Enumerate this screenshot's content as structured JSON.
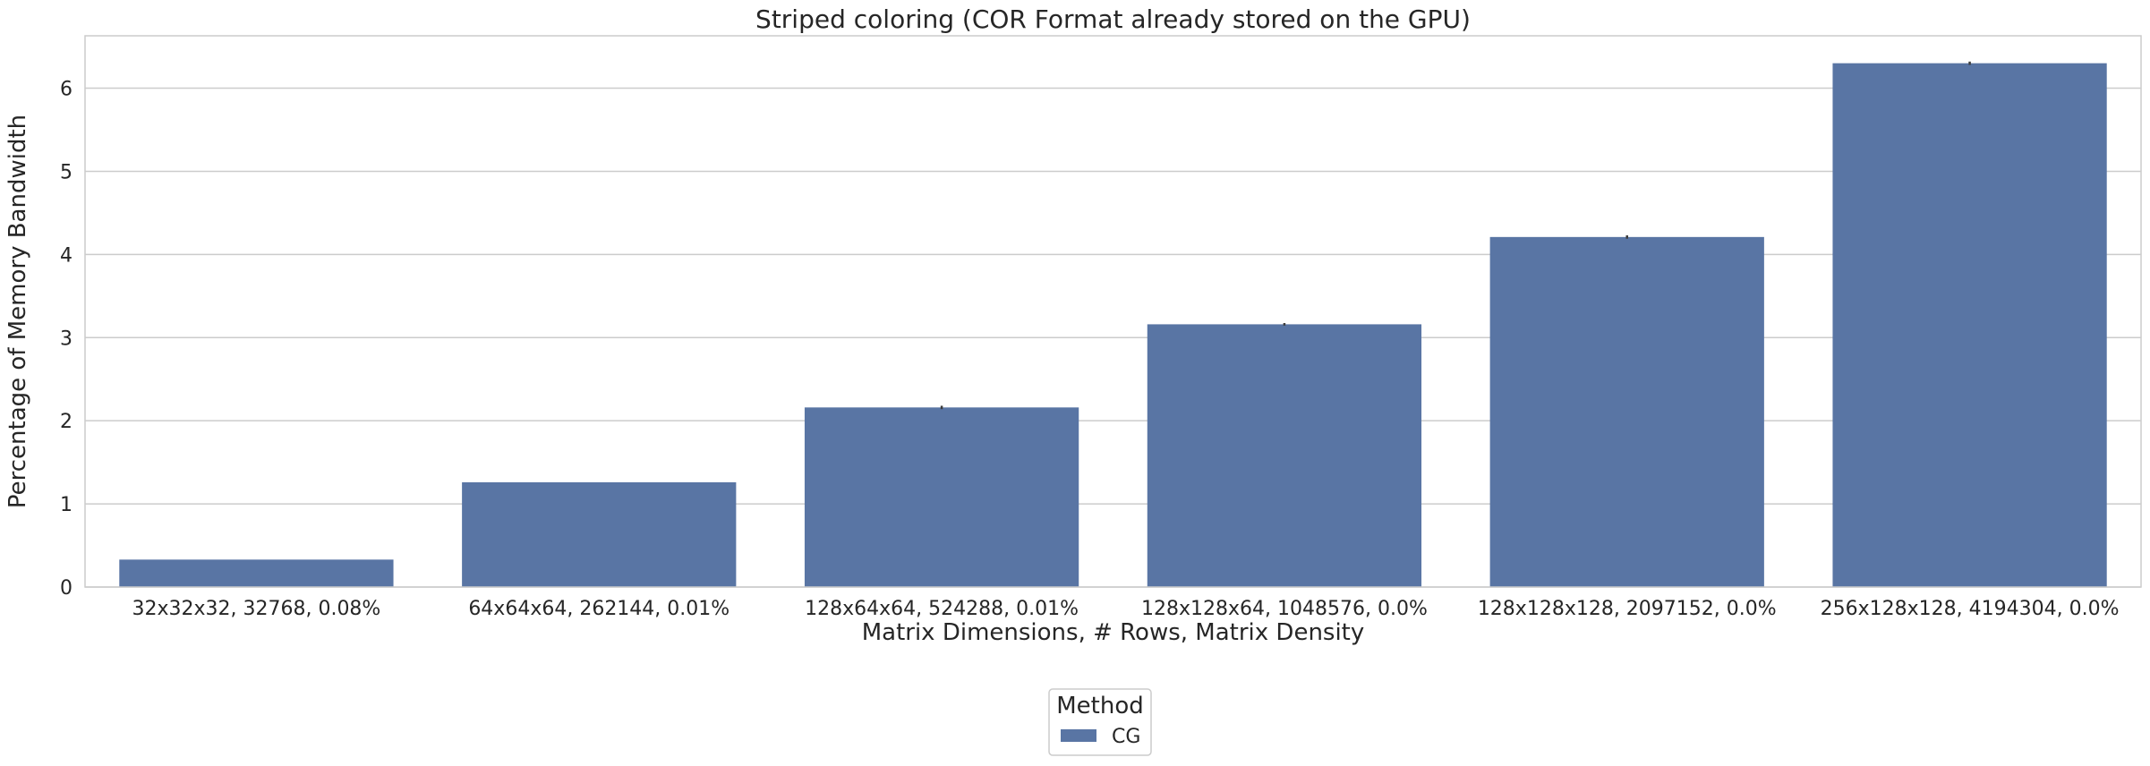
{
  "chart_data": {
    "type": "bar",
    "title": "Striped coloring (COR Format already stored on the GPU)",
    "xlabel": "Matrix Dimensions, # Rows, Matrix Density",
    "ylabel": "Percentage of Memory Bandwidth",
    "categories": [
      "32x32x32, 32768, 0.08%",
      "64x64x64, 262144, 0.01%",
      "128x64x64, 524288, 0.01%",
      "128x128x64, 1048576, 0.0%",
      "128x128x128, 2097152, 0.0%",
      "256x128x128, 4194304, 0.0%"
    ],
    "series": [
      {
        "name": "CG",
        "color": "#5975a4",
        "values": [
          0.33,
          1.26,
          2.16,
          3.16,
          4.21,
          6.3
        ],
        "error": [
          0.0,
          0.0,
          0.02,
          0.015,
          0.02,
          0.02
        ]
      }
    ],
    "ylim": [
      0,
      6.63
    ],
    "yticks": [
      0,
      1,
      2,
      3,
      4,
      5,
      6
    ],
    "grid": true,
    "legend": {
      "title": "Method",
      "placement": "bottom-center"
    }
  }
}
